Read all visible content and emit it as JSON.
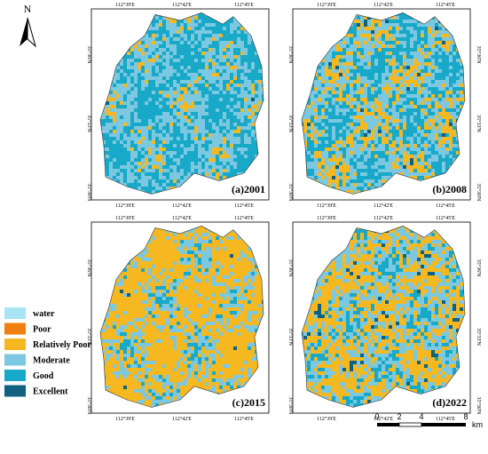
{
  "north": "N",
  "panels": [
    {
      "label": "(a)2001"
    },
    {
      "label": "(b)2008"
    },
    {
      "label": "(c)2015"
    },
    {
      "label": "(d)2022"
    }
  ],
  "lon_labels": [
    "112°39'E",
    "112°42'E",
    "112°45'E"
  ],
  "lat_labels": [
    "35°36'N",
    "35°33'N",
    "35°30'N"
  ],
  "legend": [
    {
      "label": "water",
      "color": "#a8e4f4"
    },
    {
      "label": "Poor",
      "color": "#f08010"
    },
    {
      "label": "Relatively Poor",
      "color": "#f6b820"
    },
    {
      "label": "Moderate",
      "color": "#7cc8e0"
    },
    {
      "label": "Good",
      "color": "#18a8c8"
    },
    {
      "label": "Excellent",
      "color": "#106080"
    }
  ],
  "scale_bar": {
    "ticks": [
      "0",
      "2",
      "4",
      "8"
    ],
    "unit": "km"
  }
}
